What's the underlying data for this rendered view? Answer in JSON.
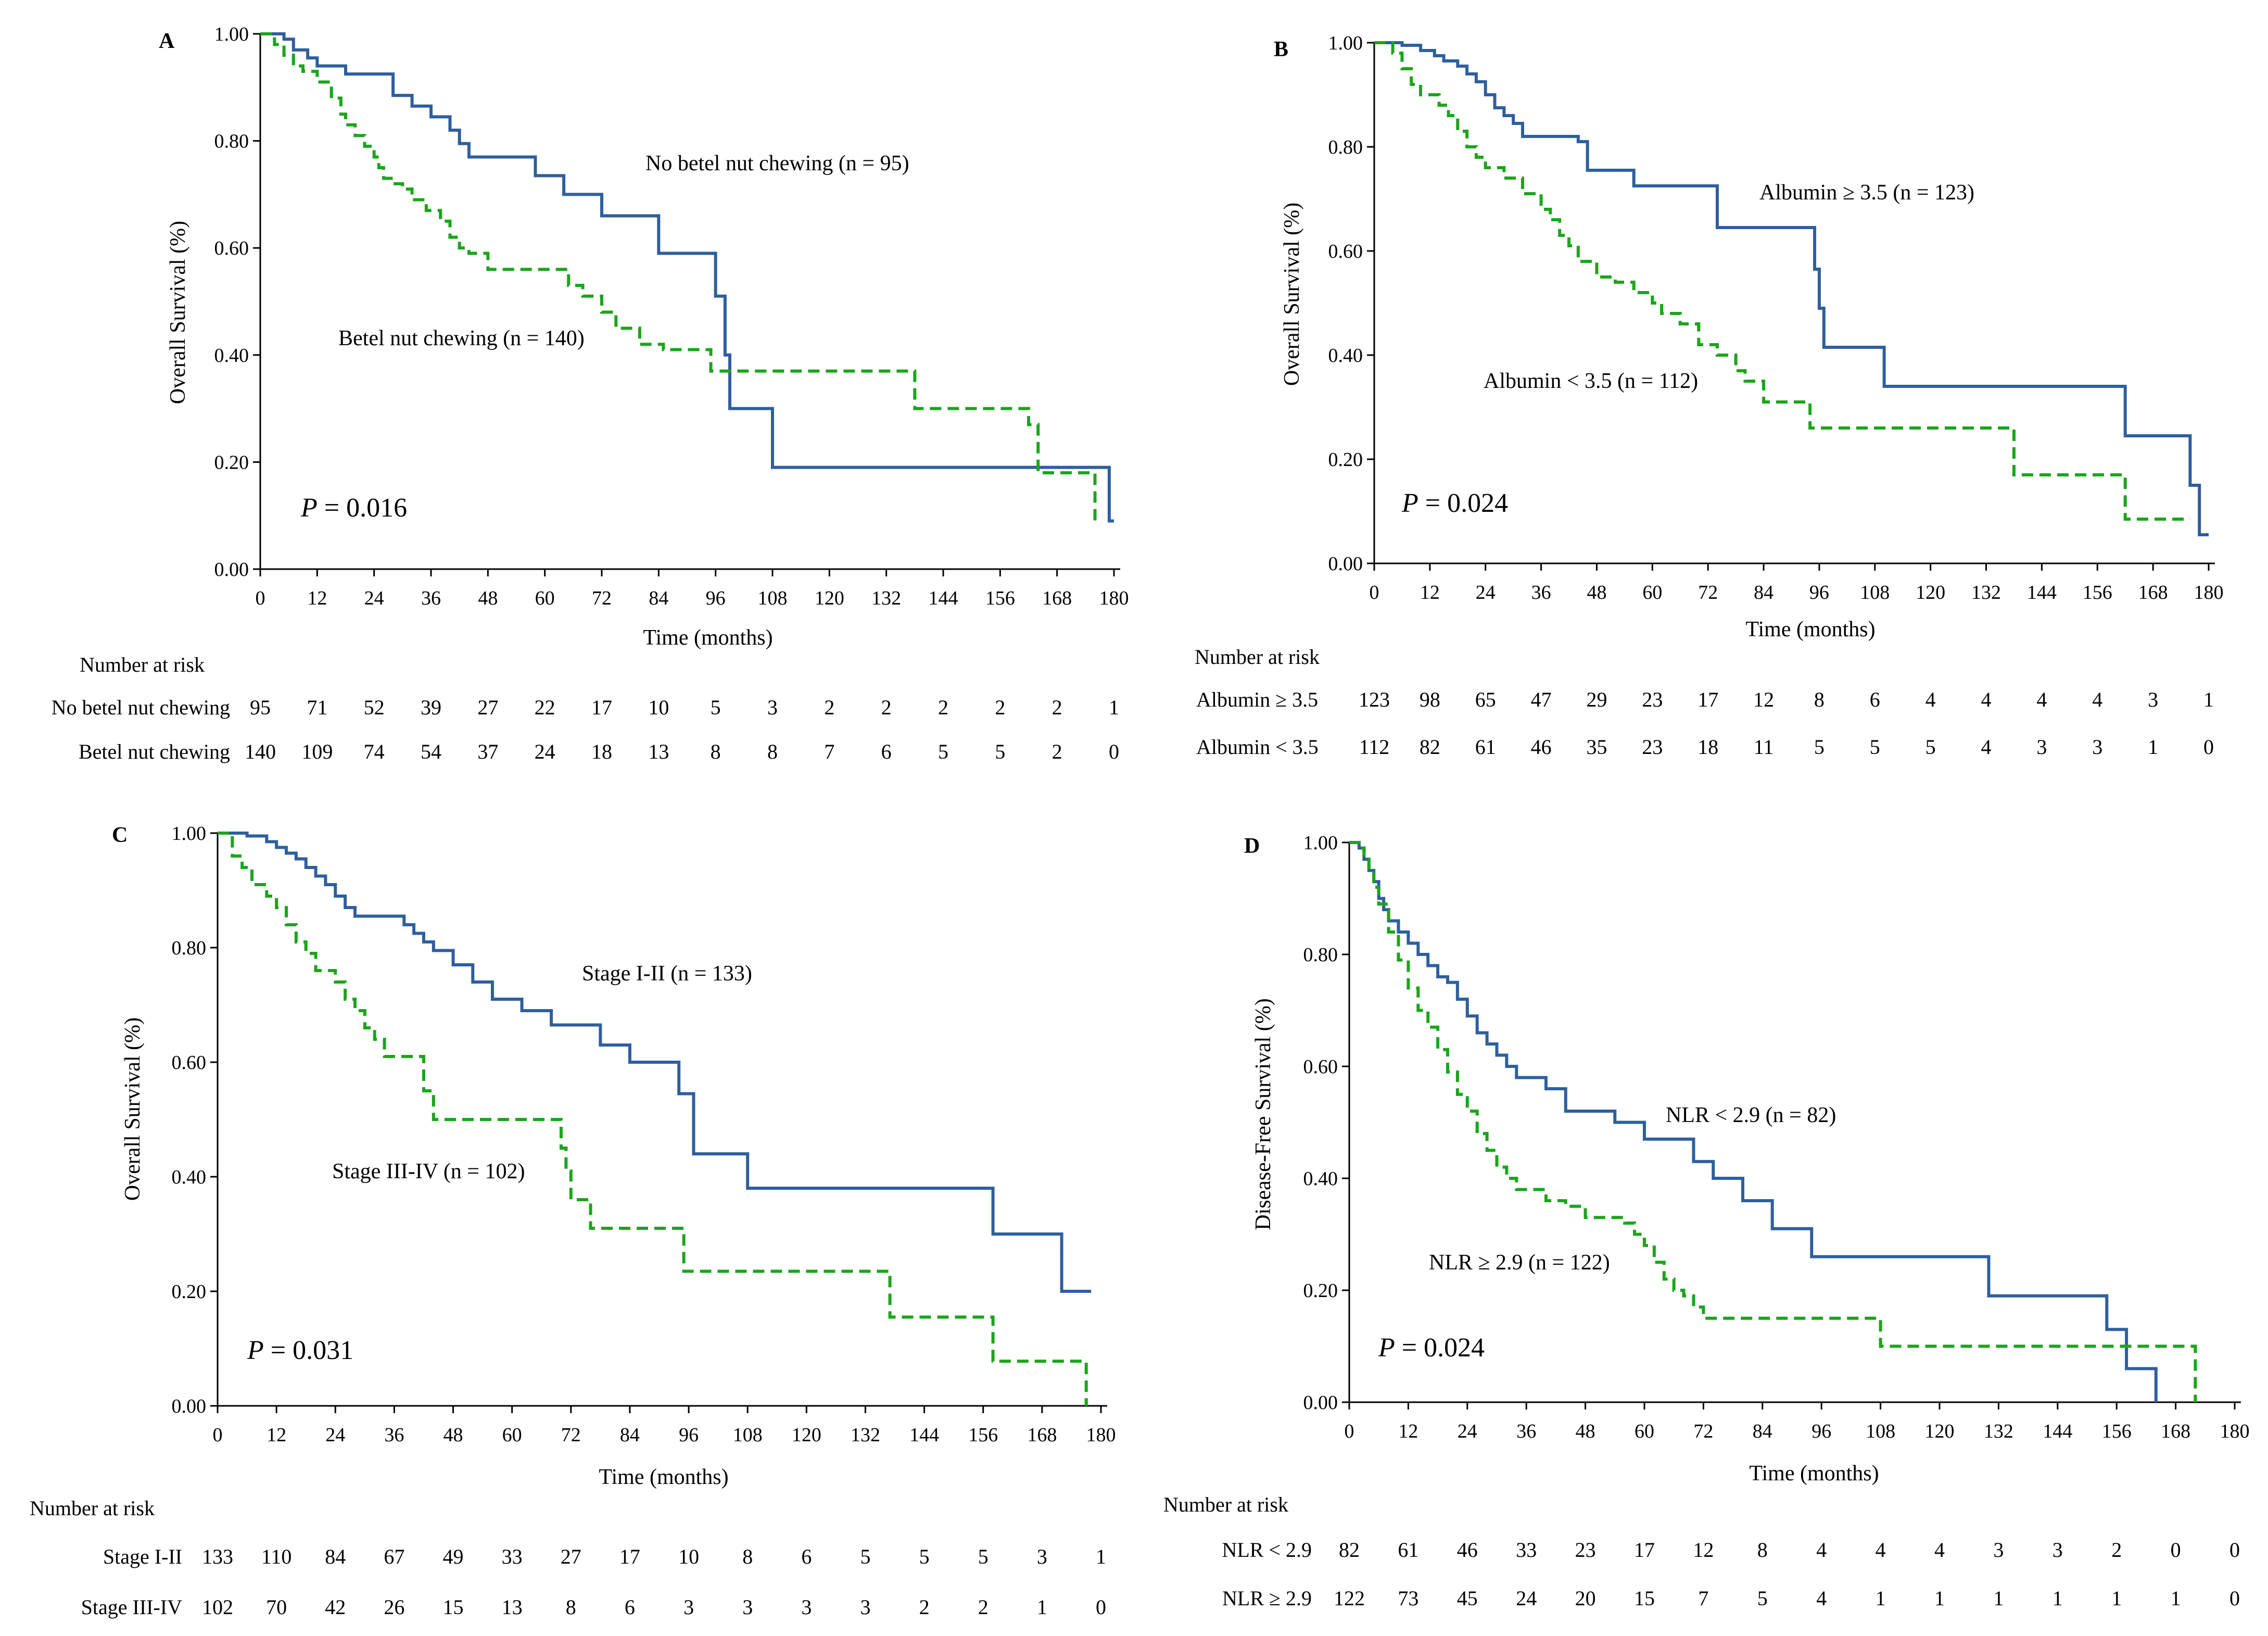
{
  "figure": {
    "x_axis_label": "Time (months)",
    "risk_header": "Number at risk",
    "x_ticks": [
      "0",
      "12",
      "24",
      "36",
      "48",
      "60",
      "72",
      "84",
      "96",
      "108",
      "120",
      "132",
      "144",
      "156",
      "168",
      "180"
    ],
    "y_ticks": [
      "0.00",
      "0.20",
      "0.40",
      "0.60",
      "0.80",
      "1.00"
    ]
  },
  "colors": {
    "curve_a": "#2e5f9e",
    "curve_b": "#1aa51a",
    "axis": "#000000"
  },
  "chart_data": [
    {
      "type": "line",
      "panel": "A",
      "ylabel": "Overall Survival (%)",
      "xlabel": "Time (months)",
      "xlim": [
        0,
        180
      ],
      "ylim": [
        0,
        1
      ],
      "p_label": "P",
      "p_value": " = 0.016",
      "series": [
        {
          "name": "No betel nut chewing (n = 95)",
          "style": "solid",
          "x": [
            0,
            5,
            7,
            10,
            12,
            18,
            22,
            28,
            32,
            36,
            40,
            42,
            44,
            58,
            64,
            72,
            84,
            96,
            98,
            99,
            108,
            178,
            179,
            180
          ],
          "y": [
            1.0,
            0.99,
            0.97,
            0.955,
            0.94,
            0.925,
            0.925,
            0.885,
            0.865,
            0.845,
            0.82,
            0.795,
            0.77,
            0.735,
            0.7,
            0.66,
            0.59,
            0.51,
            0.4,
            0.3,
            0.19,
            0.19,
            0.09,
            0.09
          ]
        },
        {
          "name": "Betel nut chewing (n = 140)",
          "style": "dashed",
          "x": [
            0,
            3,
            5,
            7,
            9,
            12,
            15,
            17,
            18,
            20,
            22,
            24,
            25,
            26,
            28,
            30,
            32,
            35,
            38,
            40,
            42,
            44,
            48,
            52,
            60,
            65,
            68,
            72,
            75,
            80,
            85,
            95,
            105,
            110,
            120,
            138,
            155,
            162,
            164,
            168,
            176
          ],
          "y": [
            1.0,
            0.98,
            0.96,
            0.94,
            0.93,
            0.91,
            0.88,
            0.85,
            0.83,
            0.81,
            0.79,
            0.77,
            0.75,
            0.73,
            0.72,
            0.71,
            0.69,
            0.67,
            0.65,
            0.62,
            0.6,
            0.59,
            0.56,
            0.56,
            0.56,
            0.53,
            0.51,
            0.48,
            0.45,
            0.42,
            0.41,
            0.37,
            0.37,
            0.37,
            0.37,
            0.3,
            0.3,
            0.27,
            0.18,
            0.18,
            0.08
          ]
        }
      ],
      "risk_table": [
        {
          "label": "No betel nut chewing",
          "values": [
            95,
            71,
            52,
            39,
            27,
            22,
            17,
            10,
            5,
            3,
            2,
            2,
            2,
            2,
            2,
            1
          ]
        },
        {
          "label": "Betel nut chewing",
          "values": [
            140,
            109,
            74,
            54,
            37,
            24,
            18,
            13,
            8,
            8,
            7,
            6,
            5,
            5,
            2,
            0
          ]
        }
      ]
    },
    {
      "type": "line",
      "panel": "B",
      "ylabel": "Overall Survival (%)",
      "xlabel": "Time (months)",
      "xlim": [
        0,
        180
      ],
      "ylim": [
        0,
        1
      ],
      "p_label": "P",
      "p_value": " = 0.024",
      "series": [
        {
          "name": "Albumin ≥ 3.5 (n = 123)",
          "style": "solid",
          "x": [
            0,
            6,
            10,
            13,
            15,
            18,
            20,
            22,
            24,
            26,
            28,
            30,
            32,
            34,
            44,
            46,
            56,
            72,
            74,
            90,
            95,
            96,
            97,
            110,
            160,
            162,
            176,
            178,
            180
          ],
          "y": [
            1.0,
            0.995,
            0.985,
            0.975,
            0.965,
            0.955,
            0.94,
            0.925,
            0.9,
            0.875,
            0.86,
            0.845,
            0.82,
            0.82,
            0.81,
            0.755,
            0.725,
            0.725,
            0.645,
            0.645,
            0.565,
            0.49,
            0.415,
            0.34,
            0.34,
            0.245,
            0.15,
            0.055,
            0.055
          ]
        },
        {
          "name": "Albumin < 3.5 (n = 112)",
          "style": "dashed",
          "x": [
            0,
            4,
            6,
            8,
            10,
            14,
            16,
            18,
            20,
            22,
            24,
            28,
            32,
            36,
            38,
            40,
            42,
            44,
            48,
            52,
            56,
            60,
            62,
            66,
            70,
            74,
            78,
            80,
            84,
            88,
            94,
            106,
            130,
            138,
            150,
            162,
            176
          ],
          "y": [
            1.0,
            0.98,
            0.95,
            0.92,
            0.9,
            0.88,
            0.86,
            0.83,
            0.8,
            0.78,
            0.76,
            0.74,
            0.71,
            0.68,
            0.66,
            0.63,
            0.61,
            0.58,
            0.55,
            0.54,
            0.52,
            0.5,
            0.48,
            0.46,
            0.42,
            0.4,
            0.37,
            0.35,
            0.31,
            0.31,
            0.26,
            0.26,
            0.26,
            0.17,
            0.17,
            0.085,
            0.085
          ]
        }
      ],
      "risk_table": [
        {
          "label": "Albumin ≥ 3.5",
          "values": [
            123,
            98,
            65,
            47,
            29,
            23,
            17,
            12,
            8,
            6,
            4,
            4,
            4,
            4,
            3,
            1
          ]
        },
        {
          "label": "Albumin < 3.5",
          "values": [
            112,
            82,
            61,
            46,
            35,
            23,
            18,
            11,
            5,
            5,
            5,
            4,
            3,
            3,
            1,
            0
          ]
        }
      ]
    },
    {
      "type": "line",
      "panel": "C",
      "ylabel": "Overall Survival (%)",
      "xlabel": "Time (months)",
      "xlim": [
        0,
        180
      ],
      "ylim": [
        0,
        1
      ],
      "p_label": "P",
      "p_value": " = 0.031",
      "series": [
        {
          "name": "Stage I-II (n = 133)",
          "style": "solid",
          "x": [
            0,
            6,
            10,
            12,
            14,
            16,
            18,
            20,
            22,
            24,
            26,
            28,
            34,
            38,
            40,
            42,
            44,
            48,
            52,
            56,
            62,
            68,
            72,
            78,
            84,
            90,
            94,
            97,
            102,
            108,
            120,
            140,
            158,
            172,
            175,
            178
          ],
          "y": [
            1.0,
            0.995,
            0.985,
            0.975,
            0.965,
            0.955,
            0.94,
            0.925,
            0.91,
            0.89,
            0.87,
            0.855,
            0.855,
            0.84,
            0.825,
            0.81,
            0.795,
            0.77,
            0.74,
            0.71,
            0.69,
            0.665,
            0.665,
            0.63,
            0.6,
            0.6,
            0.545,
            0.44,
            0.44,
            0.38,
            0.38,
            0.38,
            0.3,
            0.2,
            0.2,
            0.2
          ]
        },
        {
          "name": "Stage III-IV (n = 102)",
          "style": "dashed",
          "x": [
            0,
            3,
            5,
            7,
            10,
            12,
            14,
            16,
            18,
            20,
            24,
            26,
            28,
            30,
            32,
            34,
            38,
            42,
            44,
            46,
            60,
            70,
            71,
            72,
            76,
            90,
            95,
            110,
            130,
            137,
            150,
            158,
            176,
            177
          ],
          "y": [
            1.0,
            0.96,
            0.94,
            0.91,
            0.89,
            0.87,
            0.84,
            0.81,
            0.79,
            0.76,
            0.74,
            0.71,
            0.69,
            0.66,
            0.64,
            0.61,
            0.61,
            0.55,
            0.5,
            0.5,
            0.5,
            0.45,
            0.41,
            0.36,
            0.31,
            0.31,
            0.235,
            0.235,
            0.235,
            0.155,
            0.155,
            0.078,
            0.078,
            0.0
          ]
        }
      ],
      "risk_table": [
        {
          "label": "Stage I-II",
          "values": [
            133,
            110,
            84,
            67,
            49,
            33,
            27,
            17,
            10,
            8,
            6,
            5,
            5,
            5,
            3,
            1
          ]
        },
        {
          "label": "Stage III-IV",
          "values": [
            102,
            70,
            42,
            26,
            15,
            13,
            8,
            6,
            3,
            3,
            3,
            3,
            2,
            2,
            1,
            0
          ]
        }
      ]
    },
    {
      "type": "line",
      "panel": "D",
      "ylabel": "Disease-Free Survival (%)",
      "xlabel": "Time (months)",
      "xlim": [
        0,
        180
      ],
      "ylim": [
        0,
        1
      ],
      "p_label": "P",
      "p_value": " = 0.024",
      "series": [
        {
          "name": "NLR < 2.9 (n = 82)",
          "style": "solid",
          "x": [
            0,
            2,
            3,
            4,
            5,
            6,
            7,
            8,
            10,
            12,
            14,
            16,
            18,
            20,
            22,
            24,
            26,
            28,
            30,
            32,
            34,
            36,
            40,
            44,
            48,
            54,
            60,
            64,
            70,
            74,
            80,
            86,
            94,
            110,
            130,
            154,
            156,
            158,
            164
          ],
          "y": [
            1.0,
            0.99,
            0.97,
            0.95,
            0.93,
            0.9,
            0.88,
            0.86,
            0.84,
            0.82,
            0.8,
            0.78,
            0.76,
            0.75,
            0.72,
            0.69,
            0.66,
            0.64,
            0.62,
            0.6,
            0.58,
            0.58,
            0.56,
            0.52,
            0.52,
            0.5,
            0.47,
            0.47,
            0.43,
            0.4,
            0.36,
            0.31,
            0.26,
            0.26,
            0.19,
            0.13,
            0.13,
            0.06,
            0.0
          ]
        },
        {
          "name": "NLR ≥ 2.9 (n = 122)",
          "style": "dashed",
          "x": [
            0,
            2,
            3,
            4,
            5,
            6,
            8,
            10,
            12,
            14,
            16,
            18,
            20,
            22,
            24,
            26,
            28,
            30,
            32,
            34,
            36,
            40,
            44,
            48,
            52,
            56,
            58,
            60,
            62,
            64,
            66,
            68,
            70,
            72,
            80,
            90,
            100,
            108,
            120,
            140,
            172
          ],
          "y": [
            1.0,
            0.99,
            0.97,
            0.95,
            0.92,
            0.89,
            0.84,
            0.79,
            0.74,
            0.7,
            0.67,
            0.63,
            0.59,
            0.55,
            0.52,
            0.48,
            0.45,
            0.42,
            0.4,
            0.38,
            0.38,
            0.36,
            0.35,
            0.33,
            0.33,
            0.32,
            0.3,
            0.28,
            0.25,
            0.22,
            0.2,
            0.19,
            0.17,
            0.15,
            0.15,
            0.15,
            0.15,
            0.1,
            0.1,
            0.1,
            0.0
          ]
        }
      ],
      "risk_table": [
        {
          "label": "NLR < 2.9",
          "values": [
            82,
            61,
            46,
            33,
            23,
            17,
            12,
            8,
            4,
            4,
            4,
            3,
            3,
            2,
            0,
            0
          ]
        },
        {
          "label": "NLR ≥ 2.9",
          "values": [
            122,
            73,
            45,
            24,
            20,
            15,
            7,
            5,
            4,
            1,
            1,
            1,
            1,
            1,
            1,
            0
          ]
        }
      ]
    }
  ]
}
